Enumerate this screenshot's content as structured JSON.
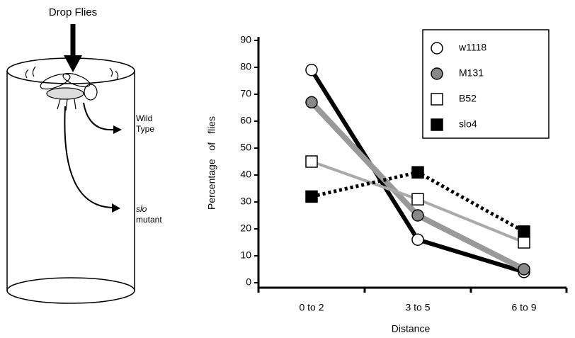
{
  "diagram": {
    "title": "Drop Flies",
    "wild": [
      "Wild",
      "Type"
    ],
    "slo": [
      "slo",
      "mutant"
    ]
  },
  "chart_data": {
    "type": "line",
    "categories": [
      "0 to 2",
      "3 to 5",
      "6 to 9"
    ],
    "series": [
      {
        "name": "w1118",
        "color": "#000000",
        "marker": "circle",
        "marker_fill": "#ffffff",
        "values": [
          79,
          16,
          4
        ]
      },
      {
        "name": "M131",
        "color": "#999999",
        "marker": "circle",
        "marker_fill": "#888888",
        "values": [
          67,
          25,
          5
        ]
      },
      {
        "name": "B52",
        "color": "#aaaaaa",
        "marker": "square",
        "marker_fill": "#ffffff",
        "values": [
          45,
          31,
          15
        ]
      },
      {
        "name": "slo4",
        "color": "#000000",
        "marker": "square",
        "marker_fill": "#000000",
        "dash": true,
        "values": [
          32,
          41,
          19
        ]
      }
    ],
    "xlabel": "Distance",
    "ylabel": "Percentage of flies",
    "ylim": [
      0,
      90
    ],
    "yticks": [
      0,
      10,
      20,
      30,
      40,
      50,
      60,
      70,
      80,
      90
    ],
    "legend": "upper right"
  }
}
